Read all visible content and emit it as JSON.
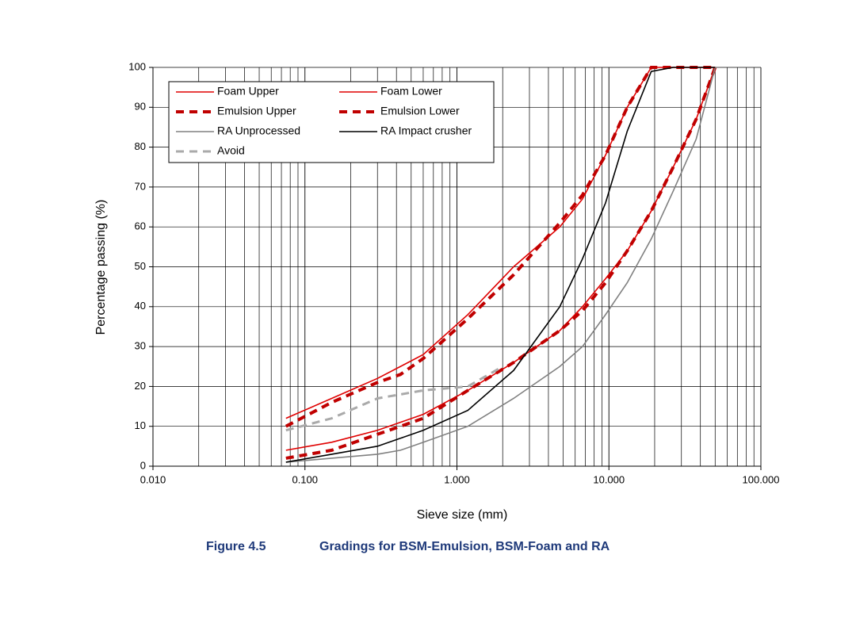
{
  "chart_data": {
    "type": "line",
    "xlabel": "Sieve size (mm)",
    "ylabel": "Percentage passing (%)",
    "xscale": "log",
    "xlim": [
      0.01,
      100
    ],
    "ylim": [
      0,
      100
    ],
    "xticks": [
      {
        "value": 0.01,
        "label": "0.010"
      },
      {
        "value": 0.1,
        "label": "0.100"
      },
      {
        "value": 1,
        "label": "1.000"
      },
      {
        "value": 10,
        "label": "10.000"
      },
      {
        "value": 100,
        "label": "100.000"
      }
    ],
    "x_minor_grid": [
      0.02,
      0.03,
      0.04,
      0.05,
      0.06,
      0.07,
      0.08,
      0.09,
      0.2,
      0.3,
      0.4,
      0.5,
      0.6,
      0.7,
      0.8,
      0.9,
      2,
      3,
      4,
      5,
      6,
      7,
      8,
      9,
      20,
      30,
      40,
      50,
      60,
      70,
      80,
      90
    ],
    "yticks": [
      0,
      10,
      20,
      30,
      40,
      50,
      60,
      70,
      80,
      90,
      100
    ],
    "grid": true,
    "series": [
      {
        "name": "Foam Upper",
        "color": "#e00000",
        "dash": false,
        "width": 1.6,
        "x": [
          0.075,
          0.15,
          0.3,
          0.425,
          0.6,
          1.18,
          2.36,
          4.75,
          6.7,
          9.5,
          13.2,
          19,
          26.5,
          37.5,
          50
        ],
        "values": [
          12,
          17,
          22,
          25,
          28,
          38,
          50,
          60,
          67,
          78,
          90,
          100,
          100,
          100,
          100
        ]
      },
      {
        "name": "Foam Lower",
        "color": "#e00000",
        "dash": false,
        "width": 1.6,
        "x": [
          0.075,
          0.15,
          0.3,
          0.425,
          0.6,
          1.18,
          2.36,
          4.75,
          6.7,
          9.5,
          13.2,
          19,
          26.5,
          37.5,
          50
        ],
        "values": [
          4,
          6,
          9,
          11,
          13,
          19,
          26,
          34,
          40,
          47,
          54,
          64,
          75,
          87,
          100
        ]
      },
      {
        "name": "Emulsion Upper",
        "color": "#c00000",
        "dash": true,
        "width": 4,
        "x": [
          0.075,
          0.15,
          0.3,
          0.425,
          0.6,
          1.18,
          2.36,
          4.75,
          6.7,
          9.5,
          13.2,
          19,
          26.5,
          37.5,
          50
        ],
        "values": [
          10,
          16,
          21,
          23,
          27,
          37,
          48,
          61,
          68,
          78,
          90,
          100,
          100,
          100,
          100
        ]
      },
      {
        "name": "Emulsion Lower",
        "color": "#c00000",
        "dash": true,
        "width": 4,
        "x": [
          0.075,
          0.15,
          0.3,
          0.425,
          0.6,
          1.18,
          2.36,
          4.75,
          6.7,
          9.5,
          13.2,
          19,
          26.5,
          37.5,
          50
        ],
        "values": [
          2,
          4,
          8,
          10,
          12,
          19,
          26,
          34,
          39,
          46,
          54,
          64,
          75,
          87,
          100
        ]
      },
      {
        "name": "RA Unprocessed",
        "color": "#808080",
        "dash": false,
        "width": 1.6,
        "x": [
          0.075,
          0.15,
          0.3,
          0.425,
          0.6,
          1.18,
          2.36,
          4.75,
          6.7,
          9.5,
          13.2,
          19,
          26.5,
          37.5,
          50
        ],
        "values": [
          1,
          2,
          3,
          4,
          6,
          10,
          17,
          25,
          30,
          38,
          46,
          57,
          69,
          82,
          100
        ]
      },
      {
        "name": "RA Impact crusher",
        "color": "#000000",
        "dash": false,
        "width": 1.6,
        "x": [
          0.075,
          0.15,
          0.3,
          0.425,
          0.6,
          1.18,
          2.36,
          4.75,
          6.7,
          9.5,
          13.2,
          19,
          26.5,
          37.5,
          50
        ],
        "values": [
          1,
          3,
          5,
          7,
          9,
          14,
          24,
          40,
          52,
          66,
          84,
          99,
          100,
          100,
          100
        ]
      },
      {
        "name": "Avoid",
        "color": "#aaaaaa",
        "dash": true,
        "width": 3,
        "x": [
          0.075,
          0.15,
          0.3,
          0.425,
          0.6,
          1.18,
          2.0
        ],
        "values": [
          9,
          12,
          17,
          18,
          19,
          20,
          25
        ]
      }
    ],
    "caption_number": "Figure 4.5",
    "caption_text": "Gradings for BSM-Emulsion, BSM-Foam and RA"
  }
}
